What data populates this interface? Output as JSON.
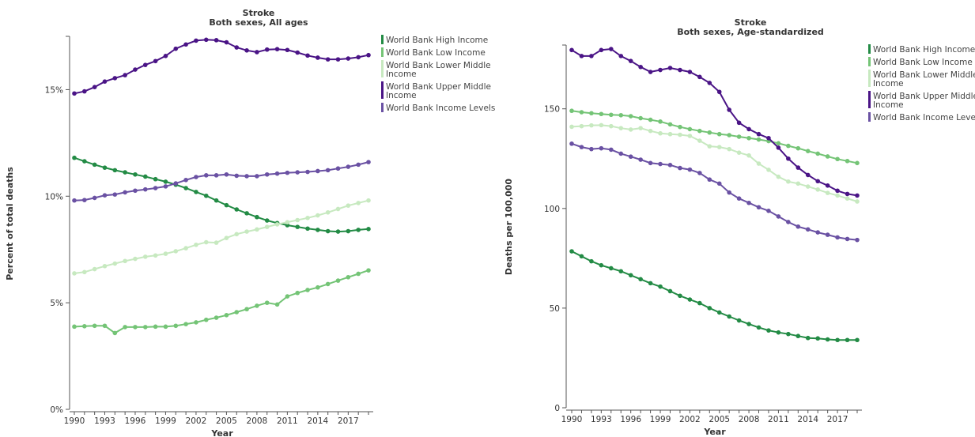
{
  "chart_data": [
    {
      "type": "line",
      "title": "Stroke",
      "subtitle": "Both sexes, All ages",
      "xlabel": "Year",
      "ylabel": "Percent of total deaths",
      "ylim": [
        0,
        17.5
      ],
      "yticks": [
        0,
        5,
        10,
        15
      ],
      "ytick_labels": [
        "0%",
        "5%",
        "10%",
        "15%"
      ],
      "xticks": [
        1990,
        1993,
        1996,
        1999,
        2002,
        2005,
        2008,
        2011,
        2014,
        2017
      ],
      "xlim": [
        1990,
        2019
      ],
      "legend_position": "right",
      "x": [
        1990,
        1991,
        1992,
        1993,
        1994,
        1995,
        1996,
        1997,
        1998,
        1999,
        2000,
        2001,
        2002,
        2003,
        2004,
        2005,
        2006,
        2007,
        2008,
        2009,
        2010,
        2011,
        2012,
        2013,
        2014,
        2015,
        2016,
        2017,
        2018,
        2019
      ],
      "series": [
        {
          "name": "World Bank High Income",
          "color": "#238b45",
          "values": [
            11.8,
            11.64,
            11.48,
            11.34,
            11.22,
            11.12,
            11.02,
            10.92,
            10.8,
            10.68,
            10.54,
            10.38,
            10.2,
            10.02,
            9.8,
            9.58,
            9.38,
            9.2,
            9.02,
            8.86,
            8.74,
            8.64,
            8.56,
            8.48,
            8.42,
            8.36,
            8.34,
            8.36,
            8.42,
            8.46
          ]
        },
        {
          "name": "World Bank Low Income",
          "color": "#74c476",
          "values": [
            3.88,
            3.9,
            3.92,
            3.92,
            3.58,
            3.86,
            3.86,
            3.86,
            3.88,
            3.88,
            3.92,
            4.0,
            4.08,
            4.2,
            4.3,
            4.42,
            4.56,
            4.7,
            4.86,
            5.0,
            4.92,
            5.3,
            5.46,
            5.6,
            5.72,
            5.88,
            6.04,
            6.2,
            6.36,
            6.52
          ]
        },
        {
          "name": "World Bank Lower Middle Income",
          "color": "#c7e9c0",
          "values": [
            6.38,
            6.44,
            6.58,
            6.72,
            6.84,
            6.96,
            7.06,
            7.16,
            7.22,
            7.3,
            7.42,
            7.56,
            7.72,
            7.84,
            7.82,
            8.04,
            8.22,
            8.34,
            8.44,
            8.56,
            8.68,
            8.78,
            8.88,
            8.98,
            9.1,
            9.24,
            9.4,
            9.56,
            9.68,
            9.8
          ]
        },
        {
          "name": "World Bank Upper Middle Income",
          "color": "#4a1486",
          "values": [
            14.82,
            14.92,
            15.12,
            15.38,
            15.54,
            15.68,
            15.94,
            16.16,
            16.34,
            16.58,
            16.92,
            17.12,
            17.3,
            17.34,
            17.32,
            17.22,
            16.98,
            16.84,
            16.76,
            16.88,
            16.9,
            16.86,
            16.74,
            16.6,
            16.5,
            16.42,
            16.42,
            16.46,
            16.52,
            16.62
          ]
        },
        {
          "name": "World Bank Income Levels",
          "color": "#6a51a3",
          "values": [
            9.8,
            9.82,
            9.92,
            10.04,
            10.08,
            10.18,
            10.26,
            10.32,
            10.38,
            10.46,
            10.6,
            10.76,
            10.9,
            10.98,
            10.98,
            11.02,
            10.96,
            10.94,
            10.94,
            11.02,
            11.06,
            11.1,
            11.12,
            11.14,
            11.18,
            11.22,
            11.3,
            11.38,
            11.48,
            11.6
          ]
        }
      ]
    },
    {
      "type": "line",
      "title": "Stroke",
      "subtitle": "Both sexes, Age-standardized",
      "xlabel": "Year",
      "ylabel": "Deaths per 100,000",
      "ylim": [
        0,
        182
      ],
      "yticks": [
        0,
        50,
        100,
        150
      ],
      "ytick_labels": [
        "0",
        "50",
        "100",
        "150"
      ],
      "xticks": [
        1990,
        1993,
        1996,
        1999,
        2002,
        2005,
        2008,
        2011,
        2014,
        2017
      ],
      "xlim": [
        1990,
        2019
      ],
      "legend_position": "right",
      "x": [
        1990,
        1991,
        1992,
        1993,
        1994,
        1995,
        1996,
        1997,
        1998,
        1999,
        2000,
        2001,
        2002,
        2003,
        2004,
        2005,
        2006,
        2007,
        2008,
        2009,
        2010,
        2011,
        2012,
        2013,
        2014,
        2015,
        2016,
        2017,
        2018,
        2019
      ],
      "series": [
        {
          "name": "World Bank High Income",
          "color": "#238b45",
          "values": [
            78.5,
            76.0,
            73.5,
            71.5,
            70.0,
            68.5,
            66.5,
            64.5,
            62.5,
            60.8,
            58.5,
            56.2,
            54.3,
            52.5,
            50.0,
            47.8,
            45.8,
            43.8,
            42.0,
            40.3,
            38.8,
            37.8,
            37.0,
            36.0,
            35.0,
            34.8,
            34.3,
            34.0,
            34.0,
            34.0
          ]
        },
        {
          "name": "World Bank Low Income",
          "color": "#74c476",
          "values": [
            149.0,
            148.3,
            147.8,
            147.4,
            147.0,
            146.8,
            146.3,
            145.3,
            144.5,
            143.6,
            142.2,
            140.9,
            139.8,
            138.9,
            138.1,
            137.3,
            136.8,
            136.0,
            135.3,
            134.6,
            133.8,
            132.7,
            131.4,
            130.2,
            128.8,
            127.5,
            126.1,
            124.8,
            123.8,
            122.8
          ]
        },
        {
          "name": "World Bank Lower Middle Income",
          "color": "#c7e9c0",
          "values": [
            141.0,
            141.3,
            141.7,
            141.8,
            141.3,
            140.3,
            139.6,
            140.3,
            138.9,
            137.7,
            137.3,
            137.0,
            136.4,
            134.0,
            131.2,
            130.8,
            129.8,
            128.0,
            126.6,
            122.5,
            119.4,
            115.9,
            113.5,
            112.5,
            111.0,
            109.5,
            107.8,
            106.5,
            105.0,
            103.5
          ]
        },
        {
          "name": "World Bank Upper Middle Income",
          "color": "#4a1486",
          "values": [
            179.5,
            176.5,
            176.5,
            179.5,
            180.0,
            176.5,
            174.0,
            171.0,
            168.5,
            169.5,
            170.5,
            169.5,
            168.5,
            166.0,
            163.0,
            158.5,
            149.5,
            143.0,
            139.8,
            137.3,
            135.3,
            130.5,
            125.0,
            120.5,
            116.8,
            113.7,
            111.5,
            108.9,
            107.3,
            106.5
          ]
        },
        {
          "name": "World Bank Income Levels",
          "color": "#6a51a3",
          "values": [
            132.5,
            130.8,
            129.8,
            130.2,
            129.5,
            127.5,
            126.0,
            124.5,
            122.8,
            122.3,
            121.8,
            120.3,
            119.5,
            117.8,
            114.5,
            112.5,
            108.0,
            105.0,
            102.8,
            100.6,
            98.8,
            96.0,
            93.2,
            90.9,
            89.5,
            88.0,
            86.8,
            85.5,
            84.7,
            84.2
          ]
        }
      ]
    }
  ]
}
